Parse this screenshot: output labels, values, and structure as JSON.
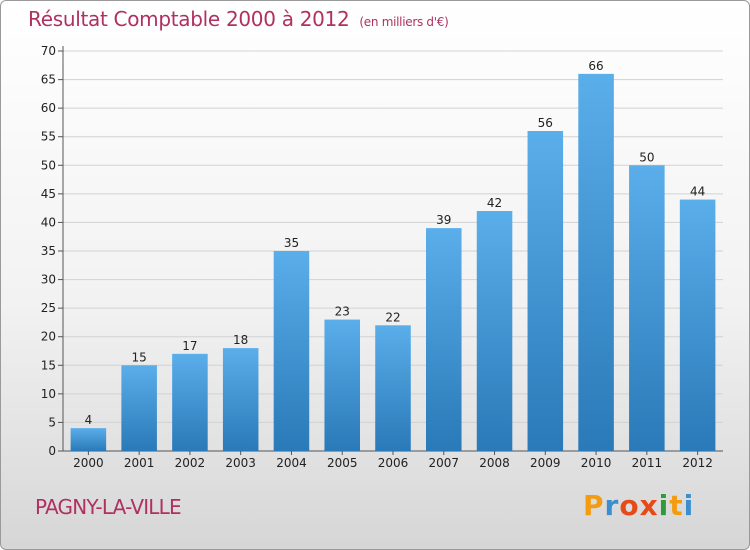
{
  "chart_data": {
    "type": "bar",
    "title": "Résultat Comptable 2000 à 2012",
    "subtitle": "(en milliers d'€)",
    "categories": [
      "2000",
      "2001",
      "2002",
      "2003",
      "2004",
      "2005",
      "2006",
      "2007",
      "2008",
      "2009",
      "2010",
      "2011",
      "2012"
    ],
    "values": [
      4,
      15,
      17,
      18,
      35,
      23,
      22,
      39,
      42,
      56,
      66,
      50,
      44
    ],
    "ylim": [
      0,
      70
    ],
    "yticks": [
      0,
      5,
      10,
      15,
      20,
      25,
      30,
      35,
      40,
      45,
      50,
      55,
      60,
      65,
      70
    ],
    "grid": true,
    "bar_color_top": "#5aaeea",
    "bar_color_bottom": "#2a79b8"
  },
  "footer": {
    "commune": "PAGNY-LA-VILLE",
    "logo": "Proxiti",
    "logo_colors": [
      "#f39c12",
      "#3a8fd0",
      "#e64a19",
      "#e64a19",
      "#2e9a3c",
      "#f39c12",
      "#3a8fd0"
    ]
  }
}
